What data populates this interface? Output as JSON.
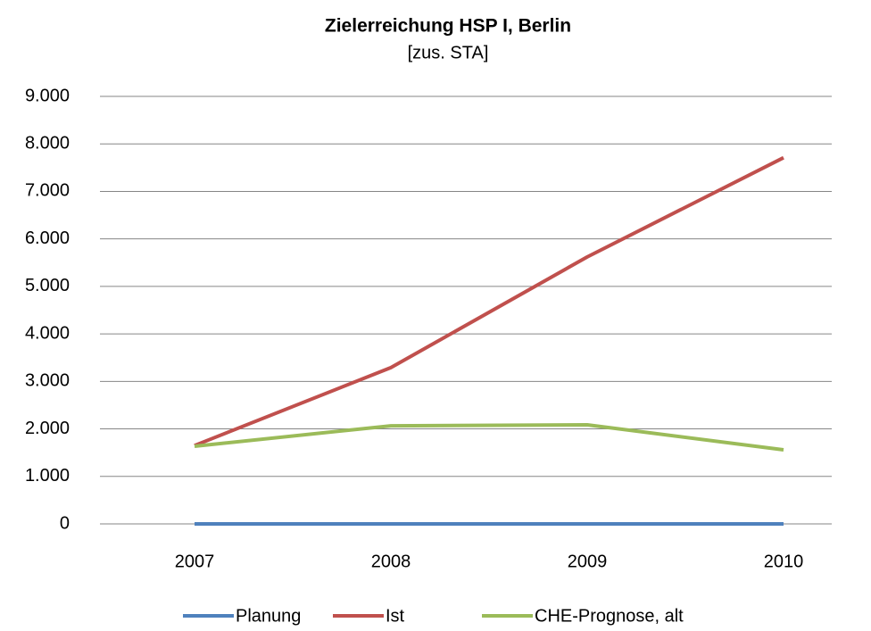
{
  "chart_data": {
    "type": "line",
    "title": "Zielerreichung HSP I, Berlin",
    "subtitle": "[zus. STA]",
    "categories": [
      "2007",
      "2008",
      "2009",
      "2010"
    ],
    "series": [
      {
        "name": "Planung",
        "color": "#4f81bd",
        "values": [
          0,
          0,
          0,
          0
        ]
      },
      {
        "name": "Ist",
        "color": "#c0504d",
        "values": [
          1650,
          3290,
          5620,
          7710
        ]
      },
      {
        "name": "CHE-Prognose, alt",
        "color": "#9bbb59",
        "values": [
          1635,
          2065,
          2085,
          1560
        ]
      }
    ],
    "ylim": [
      0,
      9000
    ],
    "yticks": [
      0,
      {
        "value": 1000,
        "label": "1.000"
      },
      {
        "value": 2000,
        "label": "2.000"
      },
      {
        "value": 3000,
        "label": "3.000"
      },
      {
        "value": 4000,
        "label": "4.000"
      },
      {
        "value": 5000,
        "label": "5.000"
      },
      {
        "value": 6000,
        "label": "6.000"
      },
      {
        "value": 7000,
        "label": "7.000"
      },
      {
        "value": 8000,
        "label": "8.000"
      },
      {
        "value": 9000,
        "label": "9.000"
      }
    ],
    "grid": true,
    "legend": "bottom"
  }
}
